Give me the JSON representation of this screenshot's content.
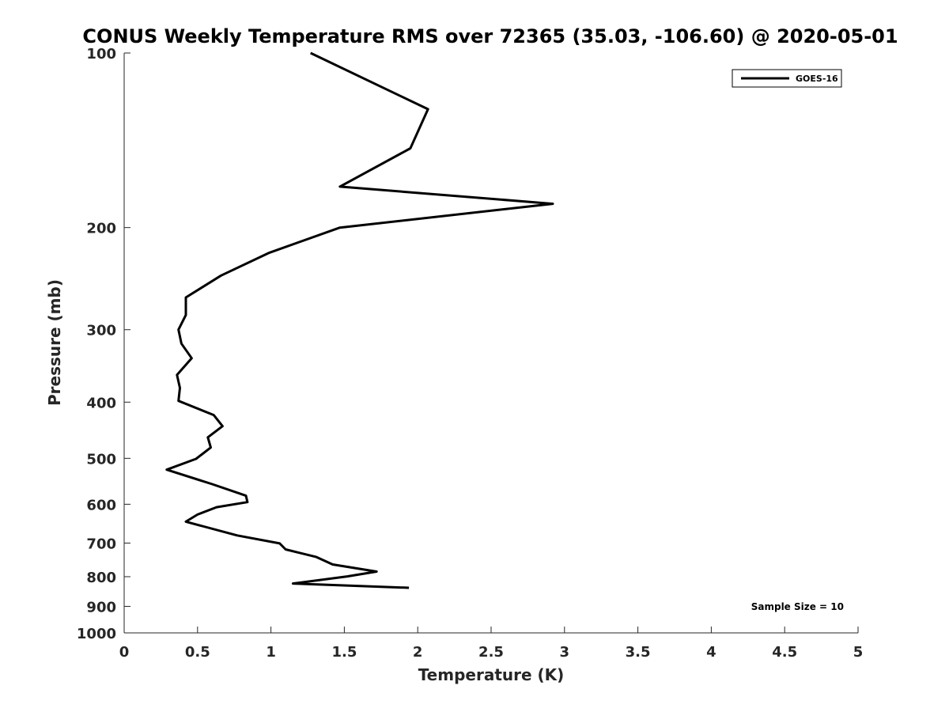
{
  "chart_data": {
    "type": "line",
    "title": "CONUS Weekly Temperature RMS over 72365 (35.03, -106.60) @ 2020-05-01",
    "xlabel": "Temperature (K)",
    "ylabel": "Pressure (mb)",
    "xlim": [
      0,
      5
    ],
    "ylim": [
      100,
      1000
    ],
    "y_scale": "log",
    "y_reversed": true,
    "grid": false,
    "x_ticks": [
      0,
      0.5,
      1,
      1.5,
      2,
      2.5,
      3,
      3.5,
      4,
      4.5,
      5
    ],
    "x_tick_labels": [
      "0",
      "0.5",
      "1",
      "1.5",
      "2",
      "2.5",
      "3",
      "3.5",
      "4",
      "4.5",
      "5"
    ],
    "y_ticks": [
      100,
      200,
      300,
      400,
      500,
      600,
      700,
      800,
      900,
      1000
    ],
    "y_tick_labels": [
      "100",
      "200",
      "300",
      "400",
      "500",
      "600",
      "700",
      "800",
      "900",
      "1000"
    ],
    "legend_position": "top-right",
    "series": [
      {
        "name": "GOES-16",
        "color": "#000000",
        "points": [
          {
            "t": 1.27,
            "p": 100
          },
          {
            "t": 2.07,
            "p": 125
          },
          {
            "t": 1.95,
            "p": 146
          },
          {
            "t": 1.47,
            "p": 170
          },
          {
            "t": 2.92,
            "p": 182
          },
          {
            "t": 1.47,
            "p": 200
          },
          {
            "t": 0.99,
            "p": 221
          },
          {
            "t": 0.66,
            "p": 242
          },
          {
            "t": 0.42,
            "p": 264
          },
          {
            "t": 0.42,
            "p": 283
          },
          {
            "t": 0.37,
            "p": 300
          },
          {
            "t": 0.39,
            "p": 317
          },
          {
            "t": 0.46,
            "p": 336
          },
          {
            "t": 0.36,
            "p": 359
          },
          {
            "t": 0.38,
            "p": 378
          },
          {
            "t": 0.37,
            "p": 398
          },
          {
            "t": 0.61,
            "p": 421
          },
          {
            "t": 0.67,
            "p": 440
          },
          {
            "t": 0.57,
            "p": 460
          },
          {
            "t": 0.59,
            "p": 479
          },
          {
            "t": 0.49,
            "p": 501
          },
          {
            "t": 0.29,
            "p": 523
          },
          {
            "t": 0.6,
            "p": 554
          },
          {
            "t": 0.83,
            "p": 580
          },
          {
            "t": 0.84,
            "p": 595
          },
          {
            "t": 0.63,
            "p": 607
          },
          {
            "t": 0.5,
            "p": 625
          },
          {
            "t": 0.42,
            "p": 643
          },
          {
            "t": 0.77,
            "p": 679
          },
          {
            "t": 1.06,
            "p": 701
          },
          {
            "t": 1.1,
            "p": 718
          },
          {
            "t": 1.31,
            "p": 740
          },
          {
            "t": 1.42,
            "p": 762
          },
          {
            "t": 1.72,
            "p": 784
          },
          {
            "t": 1.52,
            "p": 799
          },
          {
            "t": 1.15,
            "p": 822
          },
          {
            "t": 1.94,
            "p": 836
          }
        ]
      }
    ],
    "annotations": [
      "Sample Size = 10"
    ]
  }
}
